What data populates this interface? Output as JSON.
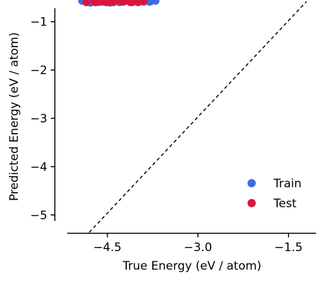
{
  "chart_data": {
    "type": "scatter",
    "xlabel": "True Energy (eV / atom)",
    "ylabel": "Predicted Energy (eV / atom)",
    "xlim": [
      -5.37,
      -0.94
    ],
    "ylim": [
      -5.38,
      -0.55
    ],
    "xticks": [
      -4.5,
      -3.0,
      -1.5
    ],
    "yticks": [
      -1,
      -2,
      -3,
      -4,
      -5
    ],
    "grid": false,
    "legend_position": "bottom-right",
    "reference_line": {
      "style": "dashed",
      "from": [
        -4.8,
        -5.36
      ],
      "to": [
        -1.2,
        -0.58
      ]
    },
    "series": [
      {
        "name": "Train",
        "color": "#4169E1",
        "points": [
          [
            -4.92,
            -0.57
          ],
          [
            -4.75,
            -0.58
          ],
          [
            -4.65,
            -0.6
          ],
          [
            -4.58,
            -0.59
          ],
          [
            -4.5,
            -0.58
          ],
          [
            -4.42,
            -0.59
          ],
          [
            -4.35,
            -0.57
          ],
          [
            -4.28,
            -0.58
          ],
          [
            -4.22,
            -0.58
          ],
          [
            -4.16,
            -0.57
          ],
          [
            -4.1,
            -0.59
          ],
          [
            -4.04,
            -0.57
          ],
          [
            -3.98,
            -0.58
          ],
          [
            -3.92,
            -0.58
          ],
          [
            -3.85,
            -0.57
          ],
          [
            -3.78,
            -0.58
          ],
          [
            -3.7,
            -0.57
          ],
          [
            -4.78,
            -0.61
          ],
          [
            -4.62,
            -0.58
          ],
          [
            -4.46,
            -0.61
          ],
          [
            -4.3,
            -0.6
          ],
          [
            -4.08,
            -0.6
          ],
          [
            -3.9,
            -0.59
          ],
          [
            -3.8,
            -0.59
          ]
        ]
      },
      {
        "name": "Test",
        "color": "#DC143C",
        "points": [
          [
            -4.85,
            -0.6
          ],
          [
            -4.72,
            -0.58
          ],
          [
            -4.68,
            -0.56
          ],
          [
            -4.6,
            -0.58
          ],
          [
            -4.55,
            -0.56
          ],
          [
            -4.48,
            -0.58
          ],
          [
            -4.44,
            -0.56
          ],
          [
            -4.38,
            -0.58
          ],
          [
            -4.33,
            -0.56
          ],
          [
            -4.27,
            -0.57
          ],
          [
            -4.2,
            -0.56
          ],
          [
            -4.14,
            -0.58
          ],
          [
            -4.08,
            -0.57
          ],
          [
            -4.02,
            -0.58
          ],
          [
            -3.96,
            -0.56
          ],
          [
            -3.9,
            -0.57
          ],
          [
            -4.7,
            -0.6
          ],
          [
            -4.52,
            -0.6
          ],
          [
            -4.4,
            -0.6
          ],
          [
            -4.24,
            -0.59
          ],
          [
            -4.12,
            -0.6
          ],
          [
            -3.99,
            -0.6
          ],
          [
            -4.62,
            -0.57
          ],
          [
            -4.36,
            -0.57
          ]
        ]
      }
    ]
  }
}
